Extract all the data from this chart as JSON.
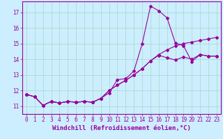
{
  "xlabel": "Windchill (Refroidissement éolien,°C)",
  "background_color": "#cceeff",
  "line_color": "#990099",
  "grid_color": "#aaddcc",
  "xlim": [
    -0.5,
    23.5
  ],
  "ylim": [
    10.5,
    17.7
  ],
  "xticks": [
    0,
    1,
    2,
    3,
    4,
    5,
    6,
    7,
    8,
    9,
    10,
    11,
    12,
    13,
    14,
    15,
    16,
    17,
    18,
    19,
    20,
    21,
    22,
    23
  ],
  "yticks": [
    11,
    12,
    13,
    14,
    15,
    16,
    17
  ],
  "series1_x": [
    0,
    1,
    2,
    3,
    4,
    5,
    6,
    7,
    8,
    9,
    10,
    11,
    12,
    13,
    14,
    15,
    16,
    17,
    18,
    19,
    20,
    21,
    22,
    23
  ],
  "series1_y": [
    11.75,
    11.6,
    11.05,
    11.3,
    11.2,
    11.3,
    11.25,
    11.3,
    11.25,
    11.5,
    11.85,
    12.7,
    12.75,
    13.25,
    15.0,
    17.4,
    17.1,
    16.65,
    15.05,
    14.85,
    13.85,
    14.3,
    14.2,
    14.2
  ],
  "series2_x": [
    0,
    1,
    2,
    3,
    4,
    5,
    6,
    7,
    8,
    9,
    10,
    11,
    12,
    13,
    14,
    15,
    16,
    17,
    18,
    19,
    20,
    21,
    22,
    23
  ],
  "series2_y": [
    11.75,
    11.6,
    11.05,
    11.3,
    11.2,
    11.3,
    11.25,
    11.3,
    11.25,
    11.5,
    12.0,
    12.35,
    12.65,
    13.0,
    13.4,
    13.9,
    14.3,
    14.6,
    14.85,
    15.0,
    15.1,
    15.2,
    15.3,
    15.4
  ],
  "series3_x": [
    0,
    1,
    2,
    3,
    4,
    5,
    6,
    7,
    8,
    9,
    10,
    11,
    12,
    13,
    14,
    15,
    16,
    17,
    18,
    19,
    20,
    21,
    22,
    23
  ],
  "series3_y": [
    11.75,
    11.6,
    11.05,
    11.3,
    11.2,
    11.3,
    11.25,
    11.3,
    11.25,
    11.5,
    12.0,
    12.35,
    12.65,
    13.0,
    13.4,
    13.9,
    14.25,
    14.1,
    13.95,
    14.15,
    14.0,
    14.3,
    14.2,
    14.2
  ],
  "marker": "D",
  "markersize": 2.0,
  "linewidth": 0.8,
  "xlabel_fontsize": 6.5,
  "tick_fontsize": 5.5
}
